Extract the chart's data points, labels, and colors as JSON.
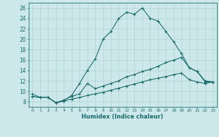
{
  "xlabel": "Humidex (Indice chaleur)",
  "background_color": "#cce8ea",
  "grid_color": "#aacccc",
  "line_color": "#1a6b6b",
  "xlim": [
    -0.5,
    23.5
  ],
  "ylim": [
    7,
    27
  ],
  "xticks": [
    0,
    1,
    2,
    3,
    4,
    5,
    6,
    7,
    8,
    9,
    10,
    11,
    12,
    13,
    14,
    15,
    16,
    17,
    18,
    19,
    20,
    21,
    22,
    23
  ],
  "yticks": [
    8,
    10,
    12,
    14,
    16,
    18,
    20,
    22,
    24,
    26
  ],
  "line1_x": [
    0,
    1,
    2,
    3,
    4,
    5,
    6,
    7,
    8,
    9,
    10,
    11,
    12,
    13,
    14,
    15,
    16,
    17,
    18,
    19,
    20,
    21,
    22,
    23
  ],
  "line1_y": [
    9.5,
    8.8,
    8.8,
    7.8,
    8.2,
    9.2,
    11.5,
    14.0,
    16.2,
    20.0,
    21.5,
    24.0,
    25.2,
    24.8,
    26.0,
    24.0,
    23.5,
    21.5,
    19.5,
    17.2,
    14.5,
    13.8,
    11.8,
    11.8
  ],
  "line2_x": [
    0,
    1,
    2,
    3,
    4,
    5,
    6,
    7,
    8,
    9,
    10,
    11,
    12,
    13,
    14,
    15,
    16,
    17,
    18,
    19,
    20,
    21,
    22,
    23
  ],
  "line2_y": [
    9.0,
    8.8,
    8.8,
    7.8,
    8.3,
    9.0,
    9.5,
    11.5,
    10.5,
    11.0,
    11.5,
    12.0,
    12.8,
    13.2,
    13.8,
    14.2,
    14.8,
    15.5,
    16.0,
    16.5,
    14.5,
    13.8,
    12.0,
    11.8
  ],
  "line3_x": [
    0,
    1,
    2,
    3,
    4,
    5,
    6,
    7,
    8,
    9,
    10,
    11,
    12,
    13,
    14,
    15,
    16,
    17,
    18,
    19,
    20,
    21,
    22,
    23
  ],
  "line3_y": [
    9.0,
    8.8,
    8.8,
    7.8,
    8.1,
    8.5,
    8.8,
    9.2,
    9.5,
    9.8,
    10.2,
    10.6,
    11.0,
    11.4,
    11.8,
    12.2,
    12.5,
    12.8,
    13.2,
    13.5,
    12.2,
    11.8,
    11.5,
    11.8
  ]
}
